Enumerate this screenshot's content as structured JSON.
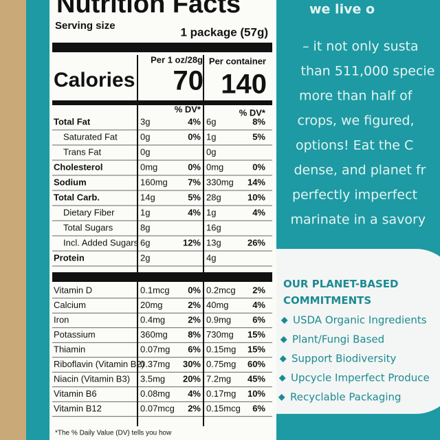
{
  "label": {
    "title": "Nutrition Facts",
    "serving_size_label": "Serving size",
    "serving_size": "1 package (57g)",
    "column_1": "Per 1 oz/28g",
    "column_2": "Per container",
    "calories_label": "Calories",
    "calories_1": "70",
    "calories_2": "140",
    "dv_header": "% DV*",
    "rows": [
      {
        "name": "Total Fat",
        "amount_1": "3g",
        "dv_1": "4%",
        "amount_2": "6g",
        "dv_2": "8%",
        "bold": true
      },
      {
        "name": "Saturated Fat",
        "amount_1": "0g",
        "dv_1": "0%",
        "amount_2": "1g",
        "dv_2": "5%"
      },
      {
        "name": "Trans Fat",
        "amount_1": "0g",
        "amount_2": "0g"
      },
      {
        "name": "Cholesterol",
        "amount_1": "0mg",
        "dv_1": "0%",
        "amount_2": "0mg",
        "dv_2": "0%",
        "bold": true
      },
      {
        "name": "Sodium",
        "amount_1": "160mg",
        "dv_1": "7%",
        "amount_2": "330mg",
        "dv_2": "14%",
        "bold": true
      },
      {
        "name": "Total Carb.",
        "amount_1": "14g",
        "dv_1": "5%",
        "amount_2": "28g",
        "dv_2": "10%",
        "bold": true
      },
      {
        "name": "Dietary Fiber",
        "amount_1": "1g",
        "dv_1": "4%",
        "amount_2": "1g",
        "dv_2": "4%"
      },
      {
        "name": "Total Sugars",
        "amount_1": "8g",
        "amount_2": "16g"
      },
      {
        "name": "Incl. Added Sugars",
        "amount_1": "6g",
        "dv_1": "12%",
        "amount_2": "13g",
        "dv_2": "26%"
      },
      {
        "name": "Protein",
        "amount_1": "2g",
        "amount_2": "4g",
        "bold": true
      }
    ],
    "vitamins": [
      {
        "name": "Vitamin D",
        "amount_1": "0.1mcg",
        "dv_1": "0%",
        "amount_2": "0.2mcg",
        "dv_2": "2%"
      },
      {
        "name": "Calcium",
        "amount_1": "20mg",
        "dv_1": "2%",
        "amount_2": "40mg",
        "dv_2": "4%"
      },
      {
        "name": "Iron",
        "amount_1": "0.4mg",
        "dv_1": "2%",
        "amount_2": "0.9mg",
        "dv_2": "6%"
      },
      {
        "name": "Potassium",
        "amount_1": "360mg",
        "dv_1": "8%",
        "amount_2": "730mg",
        "dv_2": "15%"
      },
      {
        "name": "Thiamin",
        "amount_1": "0.07mg",
        "dv_1": "6%",
        "amount_2": "0.15mg",
        "dv_2": "15%"
      },
      {
        "name": "Riboflavin (Vitamin B2)",
        "amount_1": "0.37mg",
        "dv_1": "30%",
        "amount_2": "0.75mg",
        "dv_2": "60%"
      },
      {
        "name": "Niacin (Vitamin B3)",
        "amount_1": "3.5mg",
        "dv_1": "20%",
        "amount_2": "7.2mg",
        "dv_2": "45%"
      },
      {
        "name": "Vitamin B6",
        "amount_1": "0.08mg",
        "dv_1": "4%",
        "amount_2": "0.17mg",
        "dv_2": "10%"
      },
      {
        "name": "Vitamin B12",
        "amount_1": "0.07mcg",
        "dv_1": "2%",
        "amount_2": "0.15mcg",
        "dv_2": "6%"
      }
    ],
    "footnote": "*The % Daily Value (DV) tells you how"
  },
  "story": {
    "heading": "we live o",
    "lines": [
      "– it not only susta",
      "than 511,000 specie",
      "more than half of",
      "crops, we figured,",
      "options! Eat the C",
      "dense, and planet fr",
      "perfectly imperfect",
      "marinate in a savory"
    ]
  },
  "commitments": {
    "title": "OUR PLANET-BASED COMMITMENTS",
    "items": [
      "USDA Organic Ingredients",
      "Plant/Fungi Based",
      "Support Biodiversity",
      "Upcycle Imperfect Produce",
      "Recyclable Packaging"
    ]
  }
}
